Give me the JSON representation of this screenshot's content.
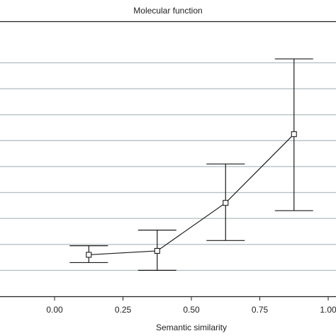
{
  "chart_data": {
    "type": "line",
    "title": "Molecular function",
    "xlabel": "Semantic similarity",
    "ylabel": "",
    "xlim": [
      -0.2,
      1.05
    ],
    "ylim": [
      0,
      10.6
    ],
    "grid": {
      "horizontal": true,
      "vertical": false
    },
    "x_ticks": [
      0.0,
      0.25,
      0.5,
      0.75,
      1.0
    ],
    "x_tick_labels": [
      "0.00",
      "0.25",
      "0.50",
      "0.75",
      "1.00"
    ],
    "y_gridlines": [
      1,
      2,
      3,
      4,
      5,
      6,
      7,
      8,
      9
    ],
    "series": [
      {
        "x": [
          0.125,
          0.375,
          0.625,
          0.875
        ],
        "y": [
          1.6,
          1.75,
          3.6,
          6.25
        ],
        "err_low": [
          1.3,
          1.0,
          2.15,
          3.3
        ],
        "err_high": [
          1.95,
          2.55,
          5.1,
          9.15
        ]
      }
    ],
    "colors": {
      "line": "#1a1a1a",
      "grid": "#b8c2c6",
      "axis": "#222222"
    }
  }
}
